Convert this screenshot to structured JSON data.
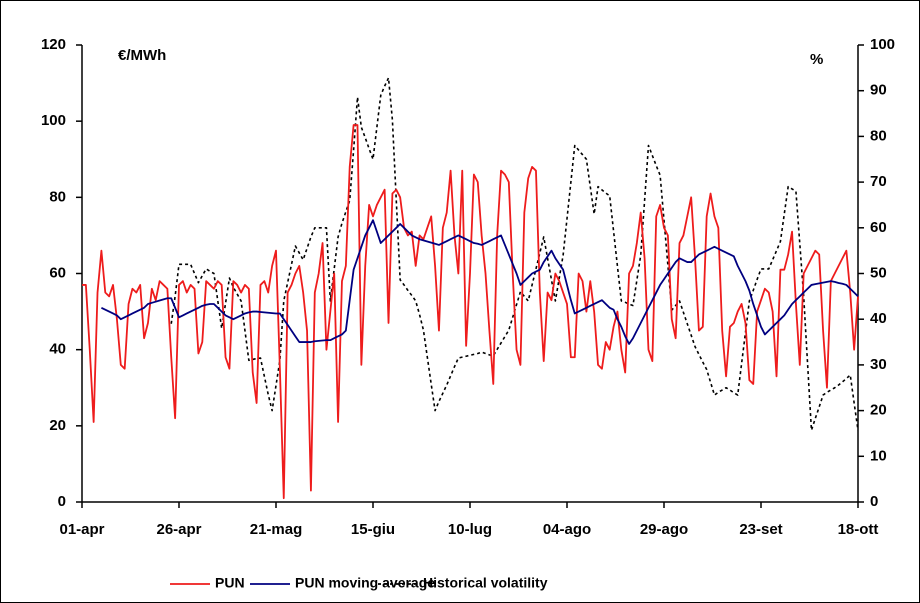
{
  "chart_data": {
    "type": "line",
    "y_label": "€/MWh",
    "y2_label": "%",
    "ylim": [
      0,
      120
    ],
    "yticks": [
      0,
      20,
      40,
      60,
      80,
      100,
      120
    ],
    "y2lim": [
      0,
      100
    ],
    "y2ticks": [
      0,
      10,
      20,
      30,
      40,
      50,
      60,
      70,
      80,
      90,
      100
    ],
    "legend": "bottom",
    "categories": [
      "01-apr",
      null,
      null,
      null,
      null,
      null,
      null,
      null,
      null,
      null,
      null,
      null,
      null,
      null,
      null,
      null,
      null,
      null,
      null,
      null,
      null,
      null,
      null,
      null,
      null,
      "26-apr",
      null,
      null,
      null,
      null,
      null,
      null,
      null,
      null,
      null,
      null,
      null,
      null,
      null,
      null,
      null,
      null,
      null,
      null,
      null,
      null,
      null,
      null,
      null,
      null,
      "21-mag",
      null,
      null,
      null,
      null,
      null,
      null,
      null,
      null,
      null,
      null,
      null,
      null,
      null,
      null,
      null,
      null,
      null,
      null,
      null,
      null,
      null,
      null,
      null,
      null,
      "15-giu",
      null,
      null,
      null,
      null,
      null,
      null,
      null,
      null,
      null,
      null,
      null,
      null,
      null,
      null,
      null,
      null,
      null,
      null,
      null,
      null,
      null,
      null,
      null,
      null,
      "10-lug",
      null,
      null,
      null,
      null,
      null,
      null,
      null,
      null,
      null,
      null,
      null,
      null,
      null,
      null,
      null,
      null,
      null,
      null,
      null,
      null,
      null,
      null,
      null,
      null,
      "04-ago",
      null,
      null,
      null,
      null,
      null,
      null,
      null,
      null,
      null,
      null,
      null,
      null,
      null,
      null,
      null,
      null,
      null,
      null,
      null,
      null,
      null,
      null,
      null,
      null,
      "29-ago",
      null,
      null,
      null,
      null,
      null,
      null,
      null,
      null,
      null,
      null,
      null,
      null,
      null,
      null,
      null,
      null,
      null,
      null,
      null,
      null,
      null,
      null,
      null,
      null,
      "23-set",
      null,
      null,
      null,
      null,
      null,
      null,
      null,
      null,
      null,
      null,
      null,
      null,
      null,
      null,
      null,
      null,
      null,
      null,
      null,
      null,
      null,
      null,
      null,
      null,
      "18-ott"
    ],
    "series": [
      {
        "name": "PUN",
        "color": "#ee1c1c",
        "line_style": "solid",
        "values": [
          57,
          57,
          40,
          21,
          55,
          66,
          55,
          54,
          57,
          48,
          36,
          35,
          52,
          56,
          55,
          57,
          43,
          47,
          56,
          53,
          58,
          57,
          56,
          38,
          22,
          57,
          58,
          55,
          57,
          56,
          39,
          42,
          58,
          57,
          56,
          58,
          57,
          38,
          35,
          58,
          57,
          55,
          57,
          56,
          34,
          26,
          57,
          58,
          55,
          62,
          66,
          35,
          1,
          55,
          57,
          60,
          62,
          55,
          45,
          3,
          55,
          60,
          68,
          40,
          50,
          60,
          21,
          58,
          62,
          88,
          99,
          99,
          36,
          62,
          78,
          75,
          78,
          80,
          82,
          47,
          81,
          82,
          80,
          72,
          70,
          71,
          62,
          70,
          69,
          72,
          75,
          62,
          45,
          72,
          76,
          87,
          70,
          60,
          87,
          41,
          60,
          86,
          84,
          70,
          60,
          45,
          31,
          70,
          87,
          86,
          84,
          60,
          40,
          36,
          76,
          85,
          88,
          87,
          55,
          37,
          55,
          53,
          60,
          58,
          55,
          52,
          38,
          38,
          60,
          58,
          50,
          58,
          50,
          36,
          35,
          42,
          40,
          46,
          50,
          40,
          34,
          60,
          62,
          68,
          76,
          64,
          40,
          37,
          75,
          78,
          72,
          70,
          48,
          43,
          68,
          70,
          75,
          80,
          64,
          45,
          46,
          75,
          81,
          75,
          72,
          45,
          33,
          46,
          47,
          50,
          52,
          47,
          32,
          31,
          50,
          53,
          56,
          55,
          50,
          33,
          61,
          61,
          65,
          71,
          52,
          36,
          60,
          62,
          64,
          66,
          65,
          45,
          30,
          58,
          60,
          62,
          64,
          66,
          55,
          40,
          54
        ]
      },
      {
        "name": "PUN moving average",
        "color": "#000080",
        "line_style": "solid",
        "values": [
          null,
          null,
          null,
          null,
          null,
          51,
          50.5,
          50,
          49.5,
          49,
          48,
          48.5,
          49,
          49.5,
          50,
          50.5,
          51,
          52,
          52.3,
          52.6,
          52.9,
          53.2,
          53.5,
          53.5,
          51,
          48.5,
          49,
          49.5,
          50,
          50.5,
          51,
          51.5,
          51.8,
          52,
          52,
          51,
          50,
          49,
          48.5,
          48,
          48.5,
          49,
          49.5,
          49.8,
          50,
          50,
          49.9,
          49.8,
          49.7,
          49.6,
          49.5,
          49.5,
          48,
          46.5,
          45,
          43.5,
          42,
          42,
          42,
          42,
          42.2,
          42.3,
          42.4,
          42.5,
          42.5,
          43,
          43.5,
          44,
          45,
          53,
          61,
          64,
          67,
          70,
          72,
          74,
          71,
          68,
          69,
          70,
          71,
          72,
          73,
          72,
          71,
          70,
          69.5,
          69,
          68.7,
          68.4,
          68.1,
          67.8,
          67.5,
          68,
          68.5,
          69,
          69.5,
          70,
          69.5,
          69,
          68.5,
          68,
          67.8,
          67.5,
          68,
          68.5,
          69,
          69.5,
          70,
          67.5,
          65,
          62.5,
          60,
          57,
          58,
          59,
          60,
          60.5,
          61,
          63,
          64.5,
          66,
          64,
          62.5,
          61,
          57,
          53,
          49.5,
          50,
          50.5,
          51,
          51.5,
          52,
          52.5,
          53,
          52,
          51,
          50.5,
          48,
          46,
          43.5,
          41.5,
          43,
          45,
          47,
          49,
          51,
          53,
          55,
          57,
          58.5,
          60,
          61.5,
          63,
          64,
          63.5,
          63,
          63,
          64,
          65,
          65.5,
          66,
          66.5,
          67,
          66.5,
          66,
          65.5,
          65,
          64.5,
          62,
          60,
          58,
          55.5,
          52,
          49,
          46,
          44,
          45,
          46,
          47,
          48,
          49,
          50.5,
          52,
          53,
          54,
          55,
          56,
          57,
          57.2,
          57.4,
          57.6,
          57.8,
          58,
          57.8,
          57.5,
          57.3,
          57,
          56,
          55,
          54
        ]
      },
      {
        "name": "Historical volatility",
        "color": "#000000",
        "line_style": "dotted",
        "axis": "y2",
        "values": [
          null,
          null,
          null,
          null,
          null,
          null,
          null,
          null,
          null,
          null,
          null,
          null,
          null,
          null,
          null,
          null,
          null,
          null,
          null,
          null,
          null,
          null,
          null,
          39,
          45,
          52,
          52,
          52,
          52,
          50,
          48,
          49.5,
          51,
          50.5,
          50,
          44,
          38,
          43.5,
          49,
          47,
          45.5,
          44,
          37.5,
          31,
          31.2,
          31.4,
          31.5,
          27.5,
          23.5,
          20,
          25.5,
          31,
          44,
          48,
          52,
          56,
          54.5,
          53,
          55.5,
          58,
          60,
          60,
          60,
          60,
          44,
          51,
          58,
          61,
          63.5,
          66,
          77,
          88.6,
          82,
          79.7,
          77.3,
          75,
          82,
          89,
          91,
          92.8,
          83.6,
          66,
          48.6,
          47.5,
          46.3,
          45.2,
          44,
          41,
          37.6,
          31.7,
          25.8,
          20,
          22,
          23.8,
          25.6,
          27.6,
          29.6,
          31.5,
          31.7,
          31.9,
          32.1,
          32.3,
          32.5,
          32.8,
          32.5,
          32.2,
          32,
          33.4,
          34.8,
          36.2,
          37.6,
          40.4,
          43.2,
          46,
          45,
          44,
          47.5,
          51,
          54.5,
          58,
          53.3,
          48.6,
          44,
          49,
          54,
          62,
          70,
          78,
          77,
          76,
          75,
          69,
          63,
          69,
          68.3,
          67.6,
          67,
          59.3,
          51.6,
          44,
          43.7,
          43.3,
          43,
          48.5,
          54,
          66,
          78,
          75.8,
          73.6,
          71.5,
          61.7,
          51.8,
          42,
          43,
          44,
          41.5,
          39,
          36.5,
          34,
          32.3,
          30.6,
          29,
          26.2,
          23.4,
          24,
          24.5,
          25,
          24.5,
          23.9,
          23.4,
          30.3,
          37.1,
          44,
          46.3,
          48.7,
          51,
          51,
          51,
          53,
          55,
          57,
          63,
          69,
          68.5,
          68,
          56.5,
          45,
          30.3,
          15.7,
          18.3,
          20.8,
          23.4,
          24,
          24.5,
          25,
          25.6,
          26.3,
          27,
          27.8,
          21.7,
          15.7
        ]
      }
    ]
  }
}
